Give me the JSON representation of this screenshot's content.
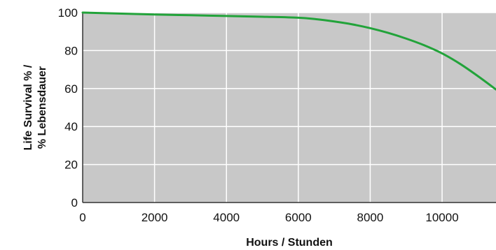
{
  "chart_data": {
    "type": "line",
    "title": "",
    "xlabel": "Hours / Stunden",
    "ylabel_lines": [
      "Life Survival % /",
      "% Lebensdauer"
    ],
    "xlim": [
      0,
      11500
    ],
    "ylim": [
      0,
      100
    ],
    "x_ticks": [
      0,
      2000,
      4000,
      6000,
      8000,
      10000
    ],
    "y_ticks": [
      0,
      20,
      40,
      60,
      80,
      100
    ],
    "x_tick_labels": [
      "0",
      "2000",
      "4000",
      "6000",
      "8000",
      "10000"
    ],
    "y_tick_labels": [
      "0",
      "20",
      "40",
      "60",
      "80",
      "100"
    ],
    "grid": true,
    "plot_background": "#c8c8c8",
    "grid_color": "#ffffff",
    "series": [
      {
        "color": "#22a33a",
        "x": [
          0,
          1000,
          2000,
          3000,
          4000,
          5000,
          6000,
          6500,
          7000,
          7500,
          8000,
          8500,
          9000,
          9500,
          10000,
          10500,
          11000,
          11500
        ],
        "y": [
          100,
          99.5,
          99,
          98.6,
          98.2,
          97.8,
          97.3,
          96.5,
          95.3,
          93.8,
          91.8,
          89.3,
          86.3,
          82.8,
          78.5,
          73,
          66.5,
          59.5
        ]
      }
    ]
  }
}
